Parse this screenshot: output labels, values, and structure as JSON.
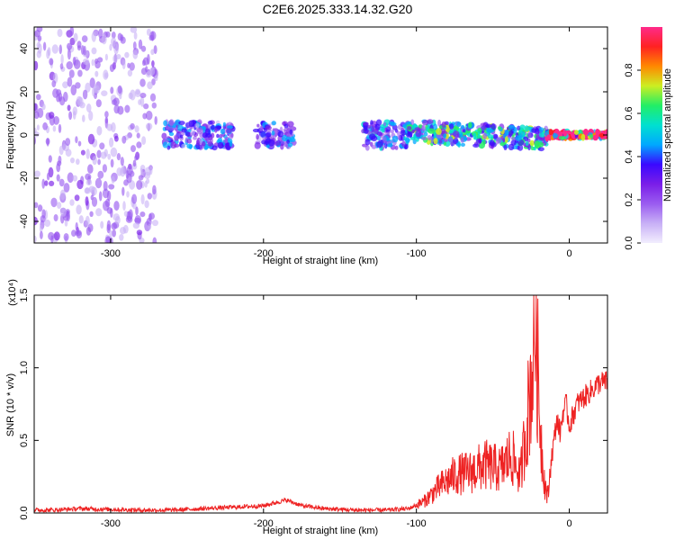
{
  "page": {
    "title": "C2E6.2025.333.14.32.G20"
  },
  "colors": {
    "background": "#ffffff",
    "axis": "#000000",
    "snr_line": "#ee2222",
    "colormap": [
      "#f2eefe",
      "#c8b0f6",
      "#9a5cf0",
      "#7a1ee8",
      "#3a08ff",
      "#00a8ff",
      "#00e0d0",
      "#22ee66",
      "#ccee22",
      "#ff8800",
      "#ff2222",
      "#ff2a8a"
    ]
  },
  "chart_data": [
    {
      "type": "heatmap",
      "xlabel": "Height of straight line (km)",
      "ylabel": "Frequency (Hz)",
      "xlim": [
        -350,
        25
      ],
      "ylim": [
        -50,
        50
      ],
      "xticks": [
        -300,
        -200,
        -100,
        0
      ],
      "xtick_labels": [
        "-300",
        "-200",
        "-100",
        "0"
      ],
      "yticks": [
        -40,
        -20,
        0,
        20,
        40
      ],
      "ytick_labels": [
        "-40",
        "-20",
        "0",
        "20",
        "40"
      ],
      "colorbar": {
        "label": "Normalized spectral amplitude",
        "range": [
          0,
          1
        ],
        "ticks": [
          0,
          0.2,
          0.4,
          0.6,
          0.8
        ],
        "tick_labels": [
          "0.0",
          "0.2",
          "0.4",
          "0.6",
          "0.8"
        ]
      },
      "regions": [
        {
          "x": [
            -350,
            -270
          ],
          "y_center": 0,
          "y_spread": 50,
          "amplitude": 0.15
        },
        {
          "x": [
            -265,
            -220
          ],
          "y_center": 0,
          "y_spread": 6,
          "amplitude": 0.3
        },
        {
          "x": [
            -205,
            -180
          ],
          "y_center": 0,
          "y_spread": 6,
          "amplitude": 0.3
        },
        {
          "x": [
            -135,
            -105
          ],
          "y_center": 0,
          "y_spread": 6,
          "amplitude": 0.35
        },
        {
          "x": [
            -105,
            -15
          ],
          "y_center": 2,
          "y_spread": 5,
          "amplitude": 0.45
        },
        {
          "x": [
            -15,
            25
          ],
          "y_center": 0,
          "y_spread": 1.5,
          "amplitude": 0.9
        }
      ]
    },
    {
      "type": "line",
      "xlabel": "Height of straight line (km)",
      "ylabel": "SNR (10 * v/v)",
      "multiplier": "(x10⁴)",
      "xlim": [
        -350,
        25
      ],
      "ylim": [
        0,
        1.5
      ],
      "xticks": [
        -300,
        -200,
        -100,
        0
      ],
      "xtick_labels": [
        "-300",
        "-200",
        "-100",
        "0"
      ],
      "yticks": [
        0,
        0.5,
        1.0,
        1.5
      ],
      "ytick_labels": [
        "0.0",
        "0.5",
        "1.0",
        "1.5"
      ],
      "series": [
        {
          "x": [
            -350,
            -340,
            -320,
            -300,
            -280,
            -260,
            -240,
            -220,
            -200,
            -185,
            -175,
            -160,
            -140,
            -120,
            -105,
            -95,
            -85,
            -75,
            -65,
            -55,
            -45,
            -38,
            -32,
            -27,
            -24,
            -22,
            -20,
            -18,
            -16,
            -14,
            -12,
            -10,
            -8,
            -6,
            -4,
            -2,
            0,
            5,
            10,
            15,
            20,
            25
          ],
          "y": [
            0.02,
            0.02,
            0.03,
            0.025,
            0.02,
            0.02,
            0.03,
            0.04,
            0.05,
            0.09,
            0.05,
            0.03,
            0.02,
            0.02,
            0.03,
            0.08,
            0.18,
            0.26,
            0.28,
            0.33,
            0.3,
            0.4,
            0.25,
            0.7,
            1.0,
            1.4,
            0.8,
            0.45,
            0.2,
            0.1,
            0.35,
            0.5,
            0.65,
            0.55,
            0.7,
            0.75,
            0.6,
            0.75,
            0.8,
            0.85,
            0.9,
            0.9
          ]
        }
      ]
    }
  ]
}
